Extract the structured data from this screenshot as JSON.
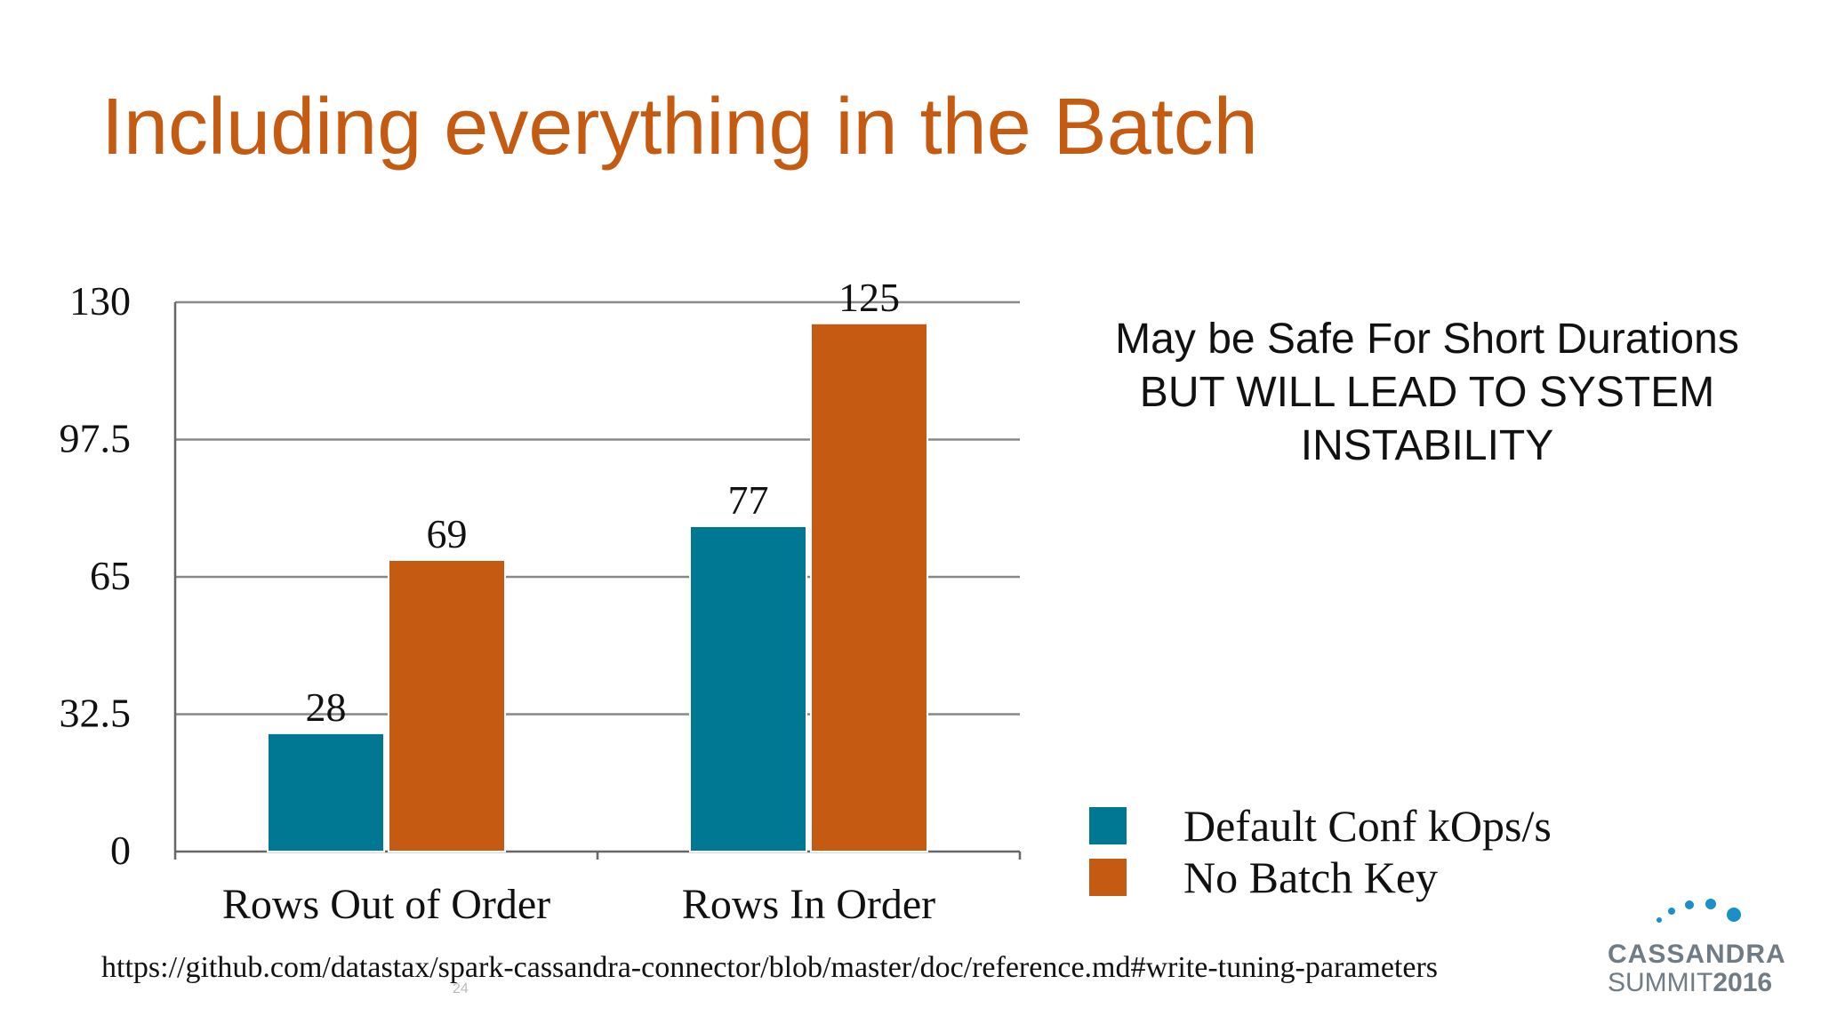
{
  "slide": {
    "title": "Including everything in the Batch",
    "note_lines": [
      "May be Safe For Short Durations",
      "BUT WILL LEAD TO SYSTEM",
      "INSTABILITY"
    ],
    "source_url": "https://github.com/datastax/spark-cassandra-connector/blob/master/doc/reference.md#write-tuning-parameters",
    "page_number": "24",
    "logo": {
      "line1": "CASSANDRA",
      "line2_prefix": "SUMMIT",
      "line2_year": "2016"
    }
  },
  "colors": {
    "title": "#C55A11",
    "series1": "#007894",
    "series2": "#C55A13",
    "grid": "#888888",
    "logo_dots": "#1a8fc8"
  },
  "chart_data": {
    "type": "bar",
    "categories": [
      "Rows Out of Order",
      "Rows In Order"
    ],
    "series": [
      {
        "name": "Default Conf kOps/s",
        "values": [
          28,
          77
        ]
      },
      {
        "name": "No Batch Key",
        "values": [
          69,
          125
        ]
      }
    ],
    "yticks": [
      "0",
      "32.5",
      "65",
      "97.5",
      "130"
    ],
    "ylim": [
      0,
      130
    ],
    "grid": true,
    "legend_position": "bottom-right",
    "data_labels": true
  }
}
